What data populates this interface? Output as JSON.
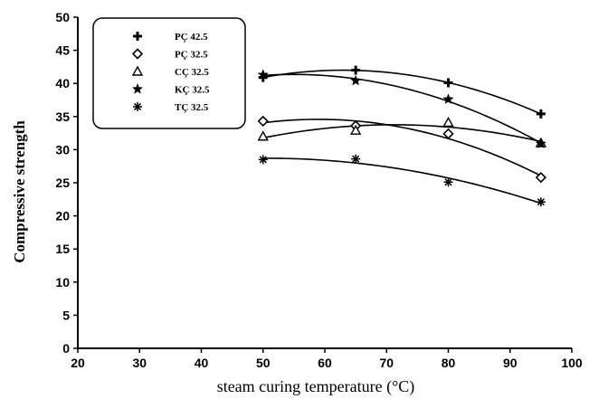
{
  "chart_data": {
    "type": "scatter",
    "title": "",
    "xlabel": "steam curing temperature (°C)",
    "ylabel": "Compressive strength",
    "xlim": [
      20,
      100
    ],
    "ylim": [
      0,
      50
    ],
    "xticks": [
      20,
      30,
      40,
      50,
      60,
      70,
      80,
      90,
      100
    ],
    "yticks": [
      0,
      5,
      10,
      15,
      20,
      25,
      30,
      35,
      40,
      45,
      50
    ],
    "grid": false,
    "legend_position": "top-left",
    "trendlines": "smooth quadratic fit per series",
    "series": [
      {
        "name": "PÇ 42.5",
        "marker": "plus",
        "x": [
          50,
          65,
          80,
          95
        ],
        "y": [
          40.9,
          42.0,
          40.1,
          35.4
        ]
      },
      {
        "name": "PÇ 32.5",
        "marker": "diamond-open",
        "x": [
          50,
          65,
          80,
          95
        ],
        "y": [
          34.3,
          33.6,
          32.4,
          25.8
        ]
      },
      {
        "name": "CÇ 32.5",
        "marker": "triangle-open",
        "x": [
          50,
          65,
          80,
          95
        ],
        "y": [
          32.0,
          32.9,
          34.1,
          31.0
        ]
      },
      {
        "name": "KÇ 32.5",
        "marker": "star",
        "x": [
          50,
          65,
          80,
          95
        ],
        "y": [
          41.3,
          40.4,
          37.6,
          30.9
        ]
      },
      {
        "name": "TÇ 32.5",
        "marker": "asterisk",
        "x": [
          50,
          65,
          80,
          95
        ],
        "y": [
          28.5,
          28.6,
          25.1,
          22.1
        ]
      }
    ]
  }
}
